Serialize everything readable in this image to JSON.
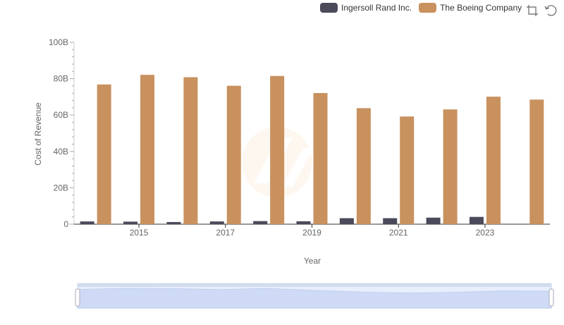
{
  "legend": {
    "series_a": "Ingersoll Rand Inc.",
    "series_b": "The Boeing Company"
  },
  "colors": {
    "series_a": "#4a4a5a",
    "series_b": "#c8915e"
  },
  "toolbox": {
    "icons": [
      "zoom-icon",
      "restore-icon"
    ]
  },
  "chart_data": {
    "type": "bar",
    "xlabel": "Year",
    "ylabel": "Cost of Revenue",
    "ylim": [
      0,
      100000000000
    ],
    "y_ticks": [
      "0",
      "20B",
      "40B",
      "60B",
      "80B",
      "100B"
    ],
    "x_tick_labels": [
      "2015",
      "2017",
      "2019",
      "2021",
      "2023"
    ],
    "categories": [
      "2014",
      "2015",
      "2016",
      "2017",
      "2018",
      "2019",
      "2020",
      "2021",
      "2022",
      "2023",
      "2024"
    ],
    "series": [
      {
        "name": "Ingersoll Rand Inc.",
        "values": [
          1500000000,
          1400000000,
          1200000000,
          1500000000,
          1700000000,
          1600000000,
          3300000000,
          3300000000,
          3600000000,
          4000000000,
          0
        ]
      },
      {
        "name": "The Boeing Company",
        "values": [
          76800000000,
          82100000000,
          80800000000,
          76100000000,
          81500000000,
          72100000000,
          63800000000,
          59200000000,
          63100000000,
          70100000000,
          68500000000
        ]
      }
    ],
    "legend_position": "top-right",
    "grid": false,
    "dataZoom": {
      "start": 0,
      "end": 100
    }
  }
}
